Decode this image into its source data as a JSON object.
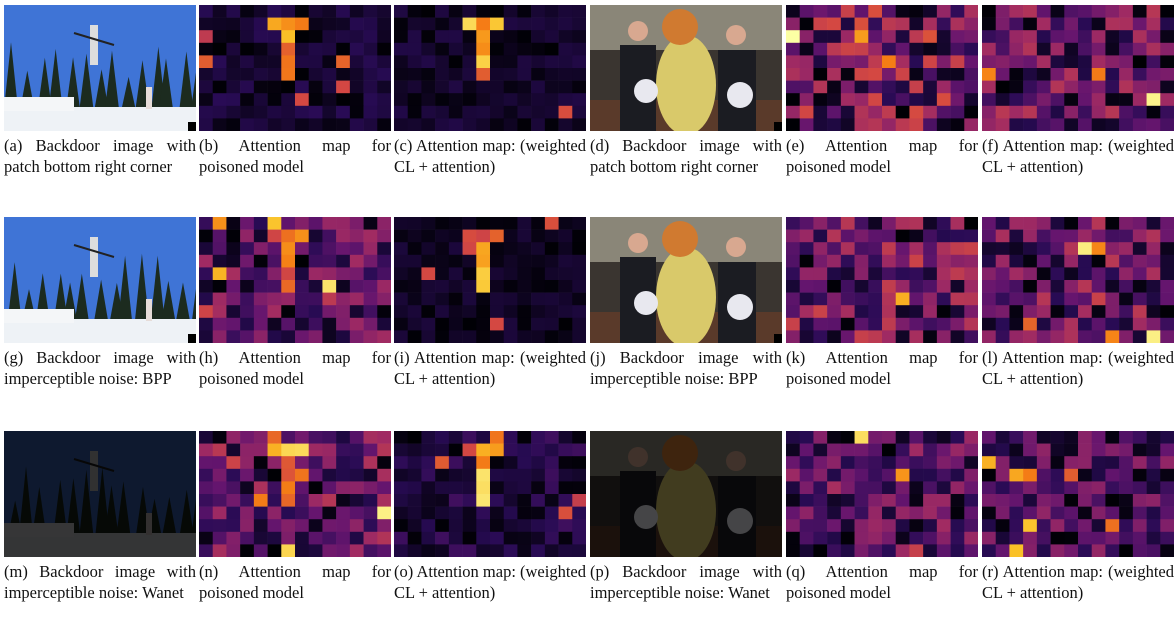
{
  "panels": [
    {
      "caption": "(a) Backdoor image with patch bottom right corner"
    },
    {
      "caption": "(b) Attention map for poisoned model"
    },
    {
      "caption": "(c) Attention map: (weighted CL + attention)"
    },
    {
      "caption": "(d) Backdoor image with patch bottom right corner"
    },
    {
      "caption": "(e) Attention map for poisoned model"
    },
    {
      "caption": "(f) Attention map: (weighted CL + attention)"
    },
    {
      "caption": "(g) Backdoor image with imperceptible noise: BPP"
    },
    {
      "caption": "(h) Attention map for poisoned model"
    },
    {
      "caption": "(i) Attention map: (weighted CL + attention)"
    },
    {
      "caption": "(j) Backdoor image with imperceptible noise: BPP"
    },
    {
      "caption": "(k) Attention map for poisoned model"
    },
    {
      "caption": "(l) Attention map: (weighted CL + attention)"
    },
    {
      "caption": "(m) Backdoor image with imperceptible noise: Wanet"
    },
    {
      "caption": "(n) Attention map for poisoned model"
    },
    {
      "caption": "(o) Attention map: (weighted CL + attention)"
    },
    {
      "caption": "(p) Backdoor image with imperceptible noise: Wanet"
    },
    {
      "caption": "(q) Attention map for poisoned model"
    },
    {
      "caption": "(r) Attention map: (weighted CL + attention)"
    }
  ]
}
